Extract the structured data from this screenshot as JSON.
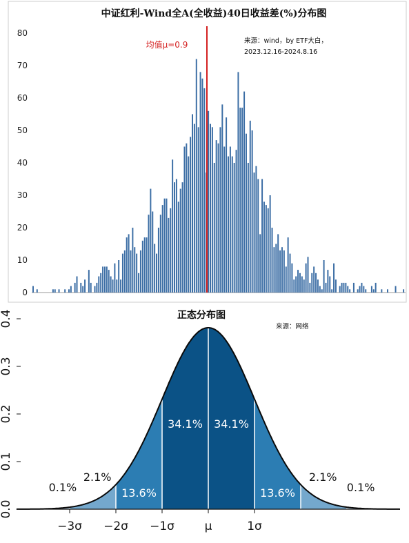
{
  "chart_data": [
    {
      "type": "bar",
      "title": "中证红利-Wind全A(全收益)40日收益差(%)分布图",
      "source_line1": "来源：wind，by ETF大白，",
      "source_line2": "2023.12.16-2024.8.16",
      "mean_label": "均值μ=0.9",
      "ylim": [
        0,
        80
      ],
      "yticks": [
        "0",
        "10",
        "20",
        "30",
        "40",
        "50",
        "60",
        "70",
        "80"
      ],
      "bar_color": "#3c6ea5",
      "mean_line_color": "#d42020",
      "values": [
        2,
        0,
        1,
        0,
        0,
        0,
        0,
        0,
        0,
        0,
        1,
        1,
        0,
        1,
        0,
        0,
        1,
        0,
        1,
        2,
        0,
        3,
        5,
        0,
        3,
        2,
        4,
        0,
        7,
        3,
        0,
        2,
        3,
        5,
        6,
        8,
        8,
        8,
        7,
        5,
        4,
        9,
        4,
        10,
        4,
        12,
        13,
        17,
        18,
        13,
        20,
        14,
        12,
        6,
        13,
        16,
        17,
        17,
        24,
        32,
        25,
        15,
        12,
        20,
        24,
        27,
        29,
        29,
        23,
        26,
        41,
        34,
        35,
        28,
        32,
        34,
        45,
        46,
        42,
        48,
        55,
        52,
        72,
        51,
        68,
        66,
        63,
        37,
        56,
        52,
        51,
        40,
        47,
        46,
        51,
        58,
        45,
        54,
        42,
        45,
        42,
        40,
        44,
        68,
        57,
        57,
        62,
        49,
        40,
        53,
        50,
        37,
        39,
        35,
        18,
        35,
        28,
        27,
        26,
        30,
        20,
        14,
        15,
        18,
        13,
        14,
        13,
        8,
        17,
        12,
        9,
        4,
        5,
        7,
        6,
        5,
        4,
        9,
        11,
        3,
        6,
        8,
        6,
        4,
        2,
        1,
        10,
        3,
        7,
        5,
        1,
        9,
        4,
        0,
        2,
        3,
        3,
        3,
        2,
        1,
        0,
        3,
        0,
        1,
        2,
        3,
        2,
        1,
        0,
        0,
        2,
        1,
        3,
        0,
        0,
        1,
        0,
        0,
        1,
        0,
        0,
        0,
        2,
        0,
        0,
        0,
        1
      ]
    },
    {
      "type": "area",
      "title": "正态分布图",
      "source": "来源：网络",
      "ylim": [
        0,
        0.4
      ],
      "yticks": [
        "0.0",
        "0.1",
        "0.2",
        "0.3",
        "0.4"
      ],
      "xticks": [
        "−3σ",
        "−2σ",
        "−1σ",
        "μ",
        "1σ"
      ],
      "bands": [
        {
          "range": [
            -1,
            0
          ],
          "label": "34.1%"
        },
        {
          "range": [
            0,
            1
          ],
          "label": "34.1%"
        },
        {
          "range": [
            -2,
            -1
          ],
          "label": "13.6%"
        },
        {
          "range": [
            1,
            2
          ],
          "label": "13.6%"
        },
        {
          "range": [
            -3,
            -2
          ],
          "label": "2.1%"
        },
        {
          "range": [
            2,
            3
          ],
          "label": "2.1%"
        },
        {
          "range": [
            -4,
            -3
          ],
          "label": "0.1%"
        },
        {
          "range": [
            3,
            4
          ],
          "label": "0.1%"
        }
      ],
      "colors": {
        "center": "#0b5286",
        "inner": "#2c7db3",
        "outer": "#74a8cd",
        "tail": "#b9d2e6",
        "curve": "#0a0a0a"
      }
    }
  ]
}
